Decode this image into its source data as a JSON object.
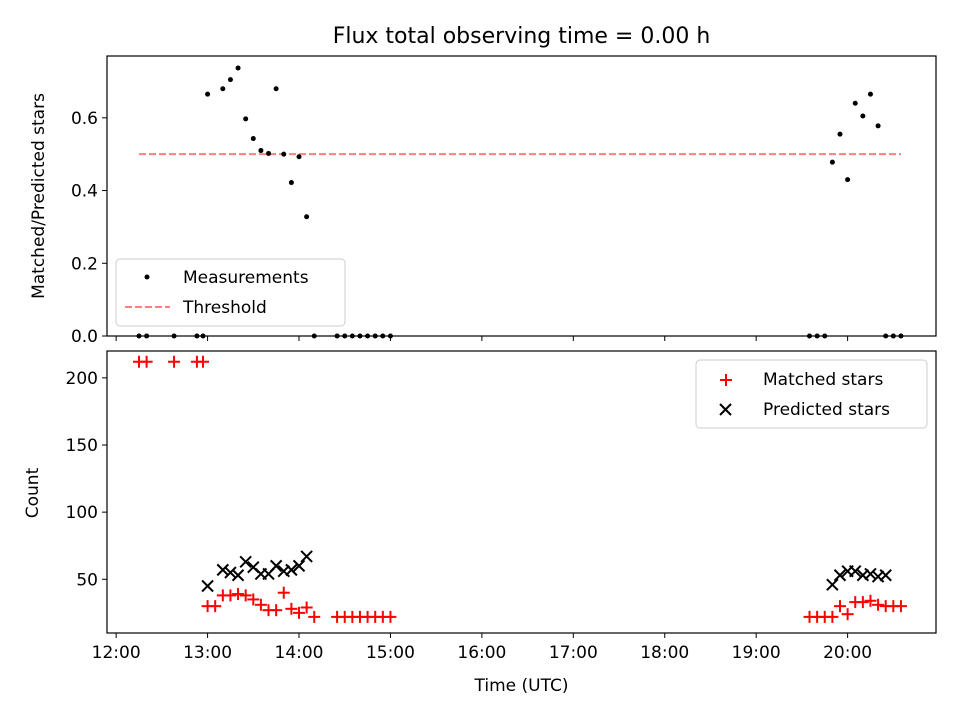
{
  "chart_data": [
    {
      "type": "scatter",
      "title": "Flux total observing time = 0.00 h",
      "xlabel": "",
      "ylabel": "Matched/Predicted stars",
      "xlim": [
        "11:54",
        "20:58"
      ],
      "ylim": [
        0,
        0.77
      ],
      "yticks": [
        0.0,
        0.2,
        0.4,
        0.6
      ],
      "ytick_labels": [
        "0.0",
        "0.2",
        "0.4",
        "0.6"
      ],
      "legend_position": "lower-left",
      "series": [
        {
          "name": "Measurements",
          "marker": "dot",
          "color": "#000000",
          "points": [
            [
              "12:15",
              0.0
            ],
            [
              "12:20",
              0.0
            ],
            [
              "12:38",
              0.0
            ],
            [
              "12:53",
              0.0
            ],
            [
              "12:57",
              0.0
            ],
            [
              "13:00",
              0.665
            ],
            [
              "13:10",
              0.68
            ],
            [
              "13:15",
              0.705
            ],
            [
              "13:20",
              0.737
            ],
            [
              "13:25",
              0.597
            ],
            [
              "13:30",
              0.543
            ],
            [
              "13:35",
              0.51
            ],
            [
              "13:40",
              0.502
            ],
            [
              "13:45",
              0.68
            ],
            [
              "13:50",
              0.5
            ],
            [
              "13:55",
              0.422
            ],
            [
              "14:00",
              0.493
            ],
            [
              "14:05",
              0.328
            ],
            [
              "14:10",
              0.0
            ],
            [
              "14:25",
              0.0
            ],
            [
              "14:30",
              0.0
            ],
            [
              "14:35",
              0.0
            ],
            [
              "14:40",
              0.0
            ],
            [
              "14:45",
              0.0
            ],
            [
              "14:50",
              0.0
            ],
            [
              "14:55",
              0.0
            ],
            [
              "15:00",
              0.0
            ],
            [
              "19:35",
              0.0
            ],
            [
              "19:40",
              0.0
            ],
            [
              "19:45",
              0.0
            ],
            [
              "19:50",
              0.478
            ],
            [
              "19:55",
              0.555
            ],
            [
              "20:00",
              0.43
            ],
            [
              "20:05",
              0.64
            ],
            [
              "20:10",
              0.605
            ],
            [
              "20:15",
              0.665
            ],
            [
              "20:20",
              0.578
            ],
            [
              "20:25",
              0.0
            ],
            [
              "20:30",
              0.0
            ],
            [
              "20:35",
              0.0
            ]
          ]
        },
        {
          "name": "Threshold",
          "type": "line",
          "style": "dashed",
          "color": "#ff7f7f",
          "points": [
            [
              "12:15",
              0.5
            ],
            [
              "20:35",
              0.5
            ]
          ]
        }
      ]
    },
    {
      "type": "scatter",
      "title": "",
      "xlabel": "Time (UTC)",
      "ylabel": "Count",
      "xlim": [
        "11:54",
        "20:58"
      ],
      "ylim": [
        10,
        220
      ],
      "yticks": [
        50,
        100,
        150,
        200
      ],
      "xticks": [
        "12:00",
        "13:00",
        "14:00",
        "15:00",
        "16:00",
        "17:00",
        "18:00",
        "19:00",
        "20:00"
      ],
      "legend_position": "upper-right",
      "series": [
        {
          "name": "Matched stars",
          "marker": "plus",
          "color": "#ff0000",
          "points": [
            [
              "12:15",
              212
            ],
            [
              "12:20",
              212
            ],
            [
              "12:38",
              212
            ],
            [
              "12:53",
              212
            ],
            [
              "12:57",
              212
            ],
            [
              "13:00",
              30
            ],
            [
              "13:05",
              30
            ],
            [
              "13:10",
              38
            ],
            [
              "13:15",
              38
            ],
            [
              "13:20",
              39
            ],
            [
              "13:25",
              38
            ],
            [
              "13:30",
              35
            ],
            [
              "13:35",
              31
            ],
            [
              "13:40",
              27
            ],
            [
              "13:45",
              27
            ],
            [
              "13:50",
              40
            ],
            [
              "13:55",
              28
            ],
            [
              "14:00",
              25
            ],
            [
              "14:05",
              29
            ],
            [
              "14:10",
              22
            ],
            [
              "14:25",
              22
            ],
            [
              "14:30",
              22
            ],
            [
              "14:35",
              22
            ],
            [
              "14:40",
              22
            ],
            [
              "14:45",
              22
            ],
            [
              "14:50",
              22
            ],
            [
              "14:55",
              22
            ],
            [
              "15:00",
              22
            ],
            [
              "19:35",
              22
            ],
            [
              "19:40",
              22
            ],
            [
              "19:45",
              22
            ],
            [
              "19:50",
              22
            ],
            [
              "19:55",
              30
            ],
            [
              "20:00",
              24
            ],
            [
              "20:05",
              33
            ],
            [
              "20:10",
              33
            ],
            [
              "20:15",
              34
            ],
            [
              "20:20",
              31
            ],
            [
              "20:25",
              30
            ],
            [
              "20:30",
              30
            ],
            [
              "20:35",
              30
            ]
          ]
        },
        {
          "name": "Predicted stars",
          "marker": "x",
          "color": "#000000",
          "points": [
            [
              "13:00",
              45
            ],
            [
              "13:10",
              57
            ],
            [
              "13:15",
              55
            ],
            [
              "13:20",
              53
            ],
            [
              "13:25",
              63
            ],
            [
              "13:30",
              59
            ],
            [
              "13:35",
              54
            ],
            [
              "13:40",
              54
            ],
            [
              "13:45",
              60
            ],
            [
              "13:50",
              56
            ],
            [
              "13:55",
              57
            ],
            [
              "14:00",
              60
            ],
            [
              "14:05",
              67
            ],
            [
              "19:50",
              46
            ],
            [
              "19:55",
              53
            ],
            [
              "20:00",
              56
            ],
            [
              "20:05",
              56
            ],
            [
              "20:10",
              53
            ],
            [
              "20:15",
              54
            ],
            [
              "20:20",
              52
            ],
            [
              "20:25",
              53
            ]
          ]
        }
      ]
    }
  ]
}
